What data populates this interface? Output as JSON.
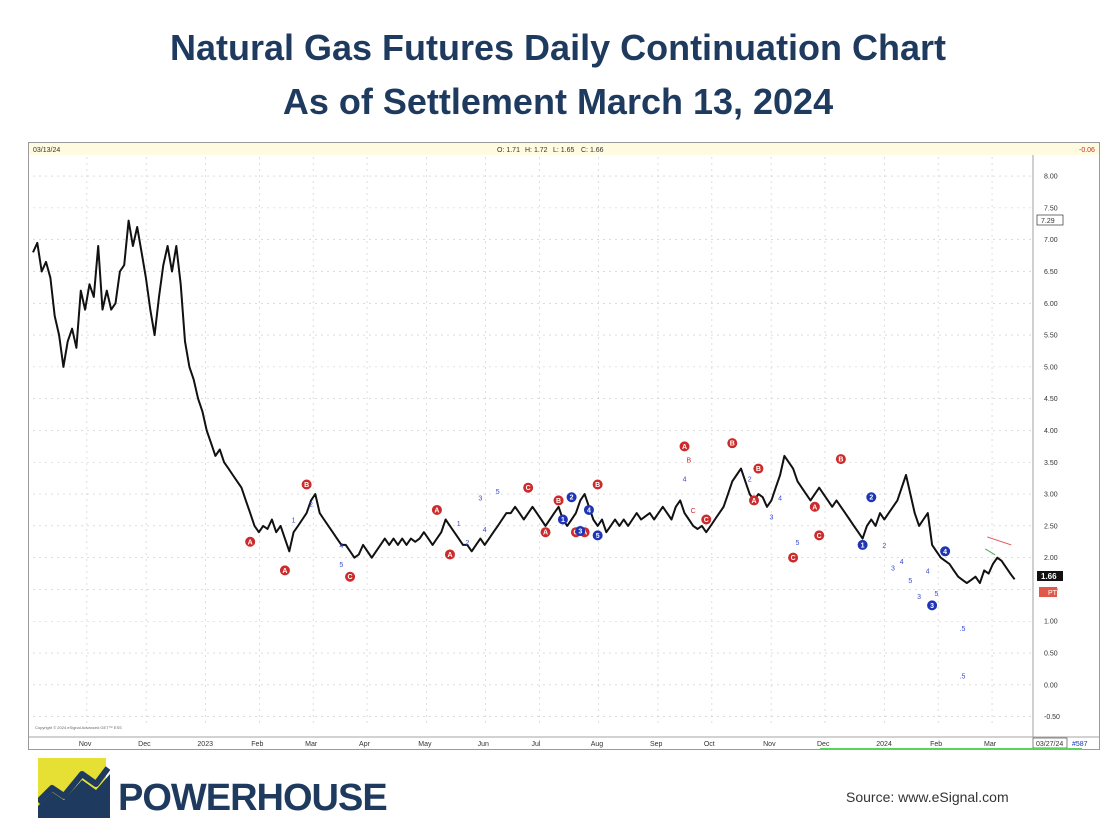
{
  "title_line1": "Natural Gas Futures Daily Continuation Chart",
  "title_line2": "As of Settlement March 13, 2024",
  "brand": "POWERHOUSE",
  "source": "Source: www.eSignal.com",
  "colors": {
    "navy": "#1f3a5f",
    "logo_yellow": "#e6e034",
    "red_marker": "#cc2b2b",
    "blue_marker": "#1f35b5",
    "price_line": "#111111"
  },
  "chart_data": {
    "type": "line",
    "title": "Natural Gas Futures Daily Continuation Chart",
    "header": {
      "date": "03/13/24",
      "open": "O: 1.71",
      "high": "H: 1.72",
      "low": "L: 1.65",
      "close": "C: 1.66",
      "change": "-0.06"
    },
    "ylim": [
      -0.6,
      8.3
    ],
    "y_ticks": [
      "8.00",
      "7.50",
      "7.00",
      "6.50",
      "6.00",
      "5.50",
      "5.00",
      "4.50",
      "4.00",
      "3.50",
      "3.00",
      "2.50",
      "2.00",
      "1.50",
      "1.00",
      "0.50",
      "0.00",
      "-0.50"
    ],
    "last_price_label": "1.66",
    "box_label_7": "7.29",
    "pti_label": "PTI",
    "x_index_max": 182,
    "month_labels": [
      {
        "label": "Nov",
        "i": 10
      },
      {
        "label": "Dec",
        "i": 21
      },
      {
        "label": "2023",
        "i": 32
      },
      {
        "label": "Feb",
        "i": 42
      },
      {
        "label": "Mar",
        "i": 52
      },
      {
        "label": "Apr",
        "i": 62
      },
      {
        "label": "May",
        "i": 73
      },
      {
        "label": "Jun",
        "i": 84
      },
      {
        "label": "Jul",
        "i": 94
      },
      {
        "label": "Aug",
        "i": 105
      },
      {
        "label": "Sep",
        "i": 116
      },
      {
        "label": "Oct",
        "i": 126
      },
      {
        "label": "Nov",
        "i": 137
      },
      {
        "label": "Dec",
        "i": 147
      },
      {
        "label": "2024",
        "i": 158
      },
      {
        "label": "Feb",
        "i": 168
      },
      {
        "label": "Mar",
        "i": 178
      }
    ],
    "x_end_label": "03/27/24",
    "x_count_label": "#587",
    "copyright": "Copyright © 2024 eSignal Advanced GET™ ESS",
    "series": [
      {
        "name": "Natural Gas Continuous",
        "values": [
          6.8,
          6.95,
          6.5,
          6.65,
          6.4,
          5.8,
          5.5,
          5.0,
          5.4,
          5.6,
          5.3,
          6.2,
          5.9,
          6.3,
          6.1,
          6.9,
          5.9,
          6.2,
          5.9,
          6.0,
          6.5,
          6.6,
          7.3,
          6.9,
          7.2,
          6.8,
          6.4,
          5.9,
          5.5,
          6.1,
          6.6,
          6.9,
          6.5,
          6.9,
          6.3,
          5.4,
          5.0,
          4.8,
          4.5,
          4.3,
          4.0,
          3.8,
          3.6,
          3.7,
          3.5,
          3.4,
          3.3,
          3.2,
          3.1,
          2.9,
          2.7,
          2.5,
          2.4,
          2.5,
          2.45,
          2.6,
          2.4,
          2.5,
          2.3,
          2.1,
          2.4,
          2.5,
          2.6,
          2.7,
          2.9,
          3.0,
          2.7,
          2.6,
          2.5,
          2.4,
          2.3,
          2.2,
          2.2,
          2.1,
          2.0,
          2.05,
          2.2,
          2.1,
          2.0,
          2.1,
          2.2,
          2.3,
          2.2,
          2.3,
          2.2,
          2.3,
          2.2,
          2.3,
          2.25,
          2.3,
          2.4,
          2.3,
          2.2,
          2.3,
          2.4,
          2.6,
          2.5,
          2.4,
          2.3,
          2.2,
          2.2,
          2.1,
          2.2,
          2.3,
          2.2,
          2.3,
          2.4,
          2.5,
          2.6,
          2.7,
          2.7,
          2.8,
          2.7,
          2.6,
          2.7,
          2.8,
          2.7,
          2.6,
          2.5,
          2.6,
          2.7,
          2.8,
          2.6,
          2.5,
          2.6,
          2.7,
          2.9,
          3.0,
          2.8,
          2.6,
          2.5,
          2.6,
          2.4,
          2.5,
          2.6,
          2.5,
          2.6,
          2.5,
          2.6,
          2.7,
          2.6,
          2.65,
          2.7,
          2.6,
          2.7,
          2.8,
          2.7,
          2.6,
          2.8,
          2.9,
          2.7,
          2.6,
          2.5,
          2.45,
          2.5,
          2.4,
          2.5,
          2.6,
          2.7,
          2.8,
          3.0,
          3.2,
          3.3,
          3.4,
          3.2,
          3.0,
          2.9,
          3.0,
          2.95,
          2.8,
          2.9,
          3.1,
          3.3,
          3.6,
          3.5,
          3.4,
          3.2,
          3.1,
          3.0,
          2.9,
          3.0,
          3.1,
          3.0
        ],
        "note": "values 0-184 continue in extended series below"
      }
    ],
    "values_tail": [
      2.9,
      2.8,
      2.9,
      2.8,
      2.7,
      2.6,
      2.5,
      2.4,
      2.3,
      2.5,
      2.6,
      2.5,
      2.7,
      2.6,
      2.7,
      2.8,
      2.9,
      3.1,
      3.3,
      3.0,
      2.7,
      2.5,
      2.6,
      2.7,
      2.2,
      2.1,
      2.0,
      1.95,
      1.9,
      1.8,
      1.7,
      1.65,
      1.6,
      1.65,
      1.7,
      1.6,
      1.8,
      1.75,
      1.9,
      2.0,
      1.95,
      1.85,
      1.75,
      1.66
    ],
    "markers": [
      {
        "c": "red",
        "t": "A",
        "i": 50,
        "v": 2.25
      },
      {
        "c": "red",
        "t": "A",
        "i": 58,
        "v": 1.8
      },
      {
        "c": "red",
        "t": "B",
        "i": 63,
        "v": 3.15
      },
      {
        "c": "red",
        "t": "C",
        "i": 73,
        "v": 1.7
      },
      {
        "c": "red",
        "t": "A",
        "i": 93,
        "v": 2.75
      },
      {
        "c": "red",
        "t": "A",
        "i": 96,
        "v": 2.05
      },
      {
        "c": "red",
        "t": "C",
        "i": 114,
        "v": 3.1
      },
      {
        "c": "red",
        "t": "A",
        "i": 118,
        "v": 2.4
      },
      {
        "c": "red",
        "t": "B",
        "i": 121,
        "v": 2.9
      },
      {
        "c": "red",
        "t": "C",
        "i": 125,
        "v": 2.4
      },
      {
        "c": "red",
        "t": "A",
        "i": 127,
        "v": 2.4
      },
      {
        "c": "red",
        "t": "B",
        "i": 130,
        "v": 3.15
      },
      {
        "c": "red",
        "t": "A",
        "i": 150,
        "v": 3.75
      },
      {
        "c": "red",
        "t": "C",
        "i": 155,
        "v": 2.6
      },
      {
        "c": "red",
        "t": "B",
        "i": 161,
        "v": 3.8
      },
      {
        "c": "red",
        "t": "A",
        "i": 166,
        "v": 2.9
      },
      {
        "c": "red",
        "t": "B",
        "i": 167,
        "v": 3.4
      },
      {
        "c": "red",
        "t": "C",
        "i": 175,
        "v": 2.0
      },
      {
        "c": "red",
        "t": "A",
        "i": 180,
        "v": 2.8
      },
      {
        "c": "red",
        "t": "C",
        "i": 181,
        "v": 2.35
      },
      {
        "c": "red",
        "t": "B",
        "i": 186,
        "v": 3.55
      },
      {
        "c": "blue",
        "t": "1",
        "i": 122,
        "v": 2.6
      },
      {
        "c": "blue",
        "t": "2",
        "i": 124,
        "v": 2.95
      },
      {
        "c": "blue",
        "t": "3",
        "i": 126,
        "v": 2.42
      },
      {
        "c": "blue",
        "t": "4",
        "i": 128,
        "v": 2.75
      },
      {
        "c": "blue",
        "t": "5",
        "i": 130,
        "v": 2.35
      },
      {
        "c": "blue",
        "t": "1",
        "i": 191,
        "v": 2.2
      },
      {
        "c": "blue",
        "t": "2",
        "i": 193,
        "v": 2.95
      },
      {
        "c": "blue",
        "t": "3",
        "i": 207,
        "v": 1.25
      },
      {
        "c": "blue",
        "t": "4",
        "i": 210,
        "v": 2.1
      }
    ],
    "wave_labels": [
      {
        "t": "1",
        "i": 60,
        "v": 2.55
      },
      {
        "t": "2",
        "i": 64,
        "v": 2.8
      },
      {
        "t": "4",
        "i": 71,
        "v": 2.15
      },
      {
        "t": "5",
        "i": 71,
        "v": 1.85
      },
      {
        "t": "1",
        "i": 98,
        "v": 2.5
      },
      {
        "t": "2",
        "i": 100,
        "v": 2.2
      },
      {
        "t": "3",
        "i": 103,
        "v": 2.9
      },
      {
        "t": "4",
        "i": 104,
        "v": 2.4
      },
      {
        "t": "5",
        "i": 107,
        "v": 3.0
      },
      {
        "t": "B",
        "i": 151,
        "v": 3.5
      },
      {
        "t": "4",
        "i": 150,
        "v": 3.2
      },
      {
        "t": "C",
        "i": 152,
        "v": 2.7
      },
      {
        "t": "2",
        "i": 165,
        "v": 3.2
      },
      {
        "t": "3",
        "i": 170,
        "v": 2.6
      },
      {
        "t": "4",
        "i": 172,
        "v": 2.9
      },
      {
        "t": "5",
        "i": 176,
        "v": 2.2
      },
      {
        "t": "2",
        "i": 196,
        "v": 2.15
      },
      {
        "t": "3",
        "i": 198,
        "v": 1.8
      },
      {
        "t": "4",
        "i": 200,
        "v": 1.9
      },
      {
        "t": "5",
        "i": 202,
        "v": 1.6
      },
      {
        "t": "3",
        "i": 204,
        "v": 1.35
      },
      {
        "t": "4",
        "i": 206,
        "v": 1.75
      },
      {
        "t": "5",
        "i": 208,
        "v": 1.4
      },
      {
        "t": ".5",
        "i": 214,
        "v": 0.85
      },
      {
        "t": ".5",
        "i": 214,
        "v": 0.1
      }
    ]
  }
}
